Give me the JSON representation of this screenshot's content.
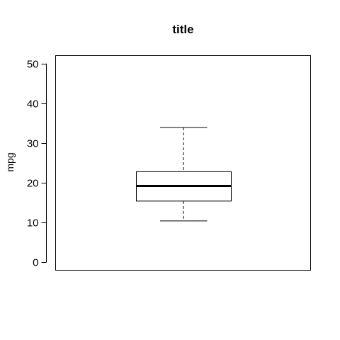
{
  "chart_data": {
    "type": "box",
    "title": "title",
    "xlabel": "",
    "ylabel": "mpg",
    "ylim": [
      -2,
      52
    ],
    "yticks": [
      0,
      10,
      20,
      30,
      40,
      50
    ],
    "ytick_labels": [
      "0",
      "10",
      "20",
      "30",
      "40",
      "50"
    ],
    "grid": false,
    "legend": "none",
    "box": {
      "min": 10.4,
      "q1": 15.4,
      "median": 19.2,
      "q3": 22.8,
      "max": 33.9
    },
    "colors": {
      "box_fill": "#ffffff",
      "stroke": "#000000"
    }
  }
}
